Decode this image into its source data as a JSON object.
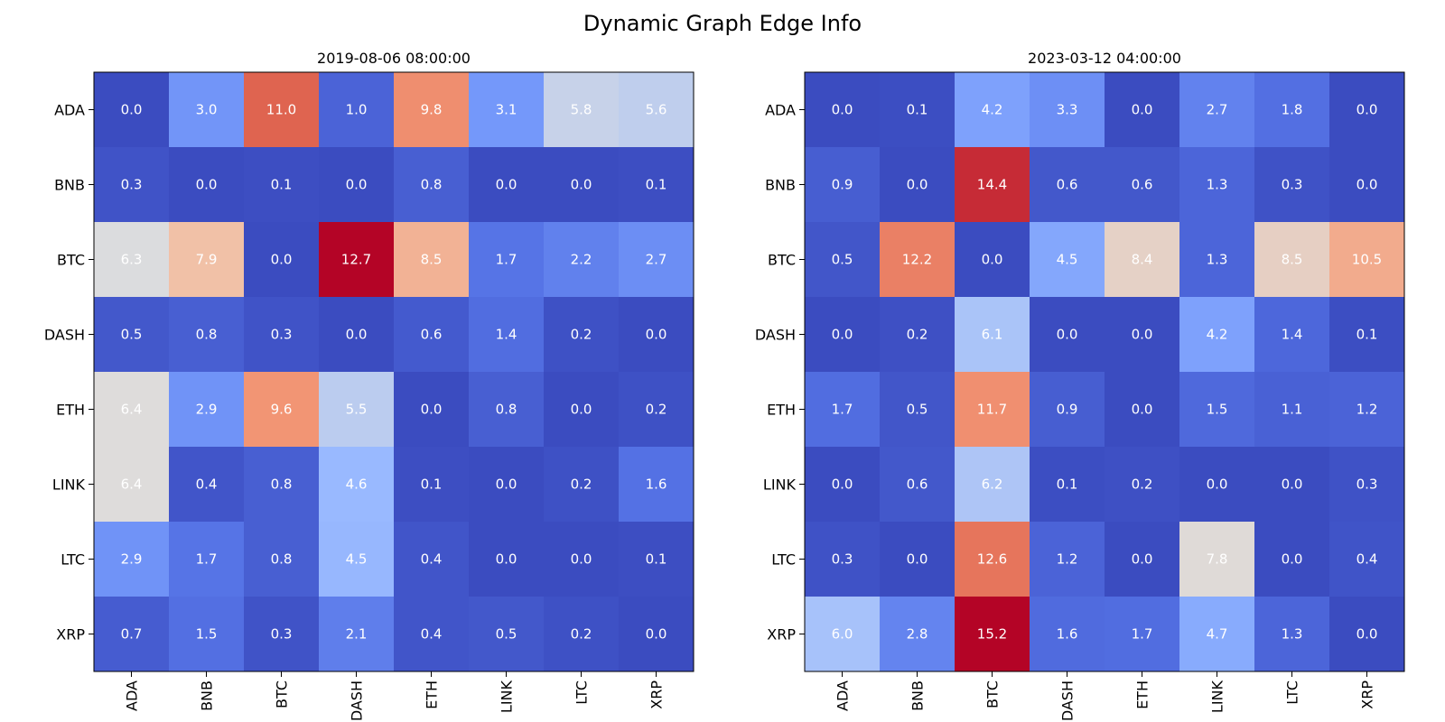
{
  "title": "Dynamic Graph Edge Info",
  "colormap": "coolwarm",
  "chart_data": [
    {
      "type": "heatmap",
      "title": "2019-08-06 08:00:00",
      "labels": [
        "ADA",
        "BNB",
        "BTC",
        "DASH",
        "ETH",
        "LINK",
        "LTC",
        "XRP"
      ],
      "vmin": 0.0,
      "vmax": 12.7,
      "values": [
        [
          0.0,
          3.0,
          11.0,
          1.0,
          9.8,
          3.1,
          5.8,
          5.6
        ],
        [
          0.3,
          0.0,
          0.1,
          0.0,
          0.8,
          0.0,
          0.0,
          0.1
        ],
        [
          6.3,
          7.9,
          0.0,
          12.7,
          8.5,
          1.7,
          2.2,
          2.7
        ],
        [
          0.5,
          0.8,
          0.3,
          0.0,
          0.6,
          1.4,
          0.2,
          0.0
        ],
        [
          6.4,
          2.9,
          9.6,
          5.5,
          0.0,
          0.8,
          0.0,
          0.2
        ],
        [
          6.4,
          0.4,
          0.8,
          4.6,
          0.1,
          0.0,
          0.2,
          1.6
        ],
        [
          2.9,
          1.7,
          0.8,
          4.5,
          0.4,
          0.0,
          0.0,
          0.1
        ],
        [
          0.7,
          1.5,
          0.3,
          2.1,
          0.4,
          0.5,
          0.2,
          0.0
        ]
      ]
    },
    {
      "type": "heatmap",
      "title": "2023-03-12 04:00:00",
      "labels": [
        "ADA",
        "BNB",
        "BTC",
        "DASH",
        "ETH",
        "LINK",
        "LTC",
        "XRP"
      ],
      "vmin": 0.0,
      "vmax": 15.2,
      "values": [
        [
          0.0,
          0.1,
          4.2,
          3.3,
          0.0,
          2.7,
          1.8,
          0.0
        ],
        [
          0.9,
          0.0,
          14.4,
          0.6,
          0.6,
          1.3,
          0.3,
          0.0
        ],
        [
          0.5,
          12.2,
          0.0,
          4.5,
          8.4,
          1.3,
          8.5,
          10.5
        ],
        [
          0.0,
          0.2,
          6.1,
          0.0,
          0.0,
          4.2,
          1.4,
          0.1
        ],
        [
          1.7,
          0.5,
          11.7,
          0.9,
          0.0,
          1.5,
          1.1,
          1.2
        ],
        [
          0.0,
          0.6,
          6.2,
          0.1,
          0.2,
          0.0,
          0.0,
          0.3
        ],
        [
          0.3,
          0.0,
          12.6,
          1.2,
          0.0,
          7.8,
          0.0,
          0.4
        ],
        [
          6.0,
          2.8,
          15.2,
          1.6,
          1.7,
          4.7,
          1.3,
          0.0
        ]
      ]
    }
  ]
}
